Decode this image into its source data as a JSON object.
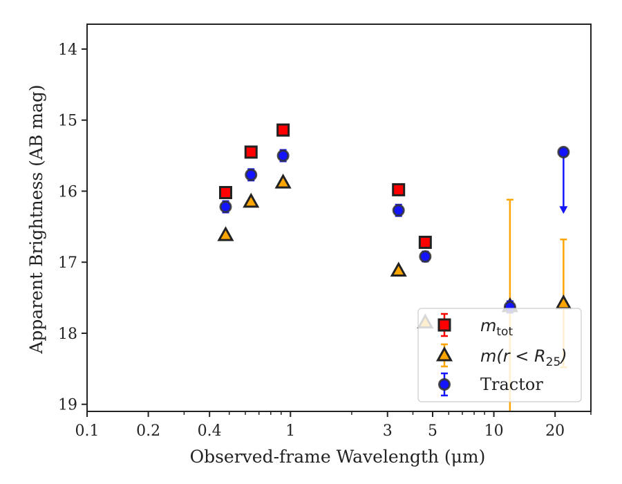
{
  "chart_data": {
    "type": "scatter",
    "xlabel": "Observed-frame Wavelength (μm)",
    "ylabel": "Apparent Brightness (AB mag)",
    "x_scale": "log",
    "xlim": [
      0.1,
      30
    ],
    "ylim": [
      19.1,
      13.65
    ],
    "y_inverted": true,
    "x_ticks": [
      {
        "value": 0.1,
        "label": "0.1"
      },
      {
        "value": 0.2,
        "label": "0.2"
      },
      {
        "value": 0.4,
        "label": "0.4"
      },
      {
        "value": 1,
        "label": "1"
      },
      {
        "value": 3,
        "label": "3"
      },
      {
        "value": 5,
        "label": "5"
      },
      {
        "value": 10,
        "label": "10"
      },
      {
        "value": 20,
        "label": "20"
      }
    ],
    "y_ticks": [
      {
        "value": 14,
        "label": "14"
      },
      {
        "value": 15,
        "label": "15"
      },
      {
        "value": 16,
        "label": "16"
      },
      {
        "value": 17,
        "label": "17"
      },
      {
        "value": 18,
        "label": "18"
      },
      {
        "value": 19,
        "label": "19"
      }
    ],
    "grid": false,
    "legend_position": "lower-right",
    "series": [
      {
        "name": "m_tot",
        "legend_main": "m",
        "legend_sub": "tot",
        "marker": "square",
        "color": "#ff0000",
        "edge_color": "#222222",
        "error_color": "#ff0000",
        "points": [
          {
            "x": 0.48,
            "y": 16.02,
            "err": 0.07
          },
          {
            "x": 0.64,
            "y": 15.45,
            "err": 0.07
          },
          {
            "x": 0.92,
            "y": 15.14,
            "err": 0.07
          },
          {
            "x": 3.4,
            "y": 15.98,
            "err": 0.07
          },
          {
            "x": 4.6,
            "y": 16.72,
            "err": 0.07
          }
        ]
      },
      {
        "name": "m(r < R25)",
        "legend_main": "m(r < R",
        "legend_sub": "25",
        "legend_tail": ")",
        "marker": "triangle",
        "color": "#ffa500",
        "edge_color": "#222222",
        "error_color": "#ffa500",
        "points": [
          {
            "x": 0.48,
            "y": 16.62,
            "err": 0.0
          },
          {
            "x": 0.64,
            "y": 16.15,
            "err": 0.0
          },
          {
            "x": 0.92,
            "y": 15.88,
            "err": 0.0
          },
          {
            "x": 3.4,
            "y": 17.12,
            "err": 0.0
          },
          {
            "x": 4.6,
            "y": 17.85,
            "err": 0.0
          },
          {
            "x": 12.0,
            "y": 17.62,
            "err": 1.5
          },
          {
            "x": 22.0,
            "y": 17.58,
            "err": 0.9
          }
        ]
      },
      {
        "name": "Tractor",
        "legend_main": "Tractor",
        "marker": "circle",
        "color": "#1414ff",
        "edge_color": "#333333",
        "error_color": "#1414ff",
        "points": [
          {
            "x": 0.48,
            "y": 16.22,
            "err": 0.08
          },
          {
            "x": 0.64,
            "y": 15.77,
            "err": 0.08
          },
          {
            "x": 0.92,
            "y": 15.5,
            "err": 0.08
          },
          {
            "x": 3.4,
            "y": 16.27,
            "err": 0.08
          },
          {
            "x": 4.6,
            "y": 16.92,
            "err": 0.07
          },
          {
            "x": 12.0,
            "y": 17.63,
            "err": 0.08
          }
        ],
        "upper_limits": [
          {
            "x": 22.0,
            "y": 15.45,
            "arrow_to": 16.3
          }
        ]
      }
    ]
  }
}
